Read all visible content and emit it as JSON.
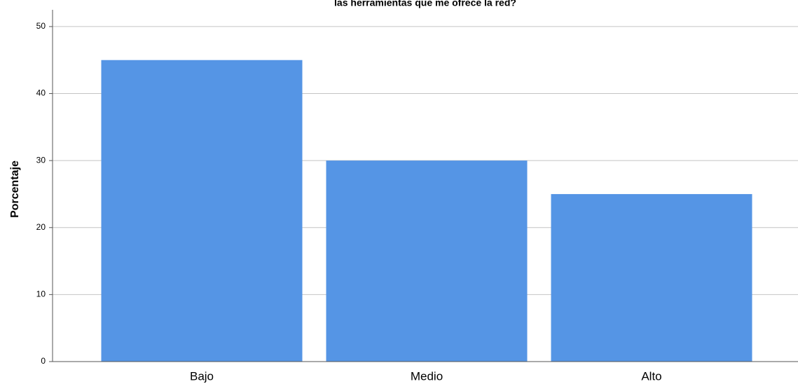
{
  "chart_data": {
    "type": "bar",
    "title": "las herramientas que me ofrece la red?",
    "y_label": "Porcentaje",
    "categories": [
      "Bajo",
      "Medio",
      "Alto"
    ],
    "values": [
      45,
      30,
      25
    ],
    "color": "#5595e5",
    "ylim": [
      0,
      52.5
    ],
    "yticks": [
      0,
      10,
      20,
      30,
      40,
      50
    ],
    "grid": true
  }
}
